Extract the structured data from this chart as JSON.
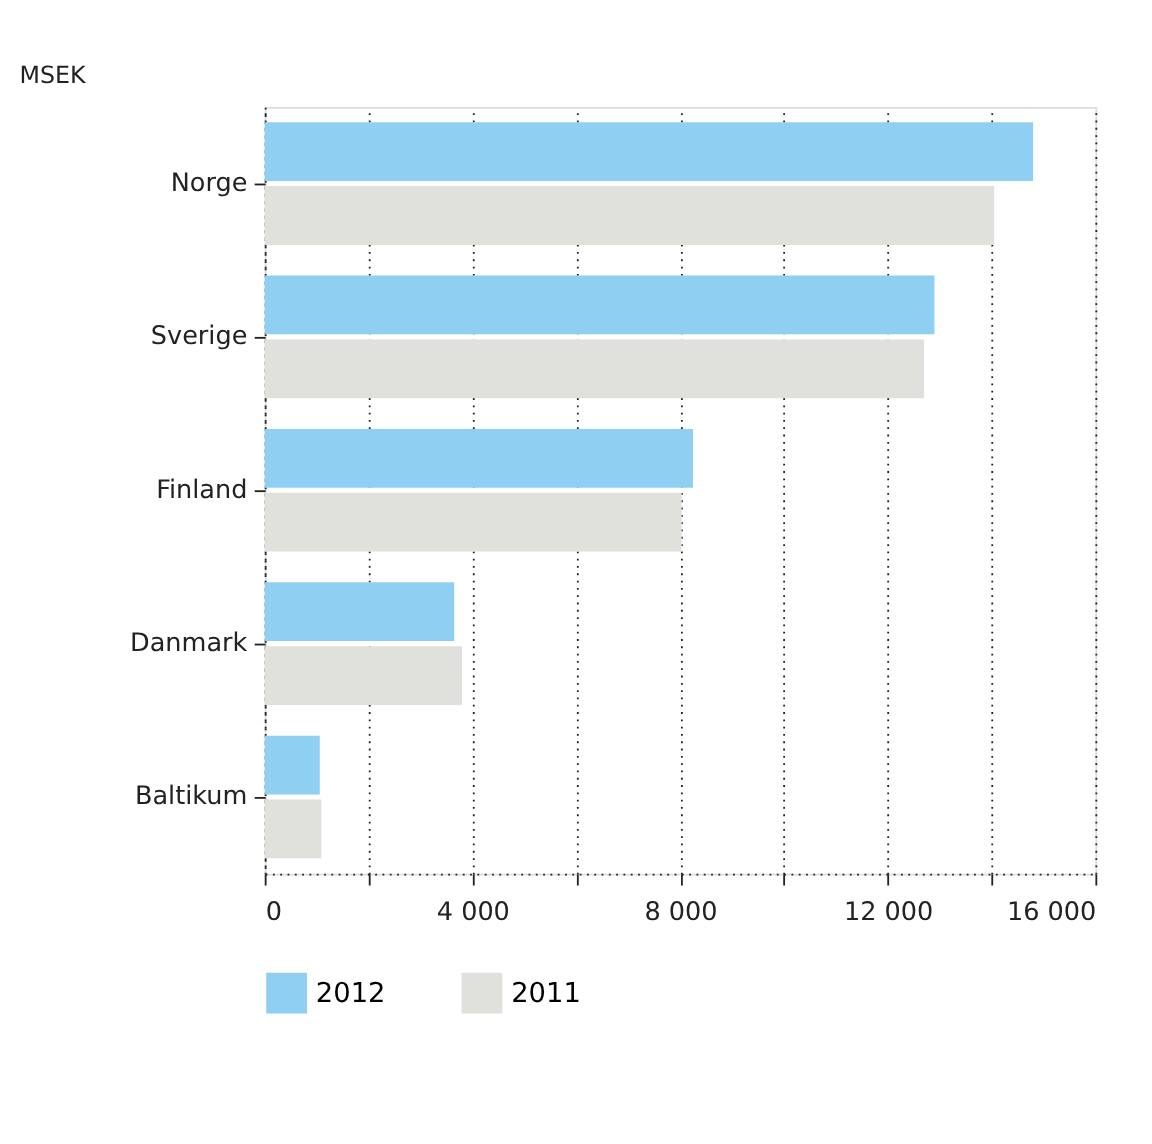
{
  "chart_data": {
    "type": "bar",
    "orientation": "horizontal",
    "title": "MSEK",
    "categories": [
      "Norge",
      "Sverige",
      "Finland",
      "Danmark",
      "Baltikum"
    ],
    "series": [
      {
        "name": "2012",
        "color": "#8fd0f2",
        "values": [
          14800,
          12900,
          8250,
          3650,
          1060
        ]
      },
      {
        "name": "2011",
        "color": "#e0e1dc",
        "values": [
          14050,
          12700,
          8030,
          3800,
          1090
        ]
      }
    ],
    "xlim": [
      0,
      16000
    ],
    "xticks": [
      0,
      {
        "value": 2000,
        "label": null
      },
      "4 000",
      {
        "value": 6000,
        "label": null
      },
      {
        "value": 8000,
        "label": "8 000"
      },
      {
        "value": 10000,
        "label": null
      },
      {
        "value": 12000,
        "label": "12 000"
      },
      {
        "value": 14000,
        "label": null
      },
      {
        "value": 16000,
        "label": "16 000"
      }
    ],
    "grid": "x",
    "legend": "bottom",
    "line_style": "dotted"
  }
}
